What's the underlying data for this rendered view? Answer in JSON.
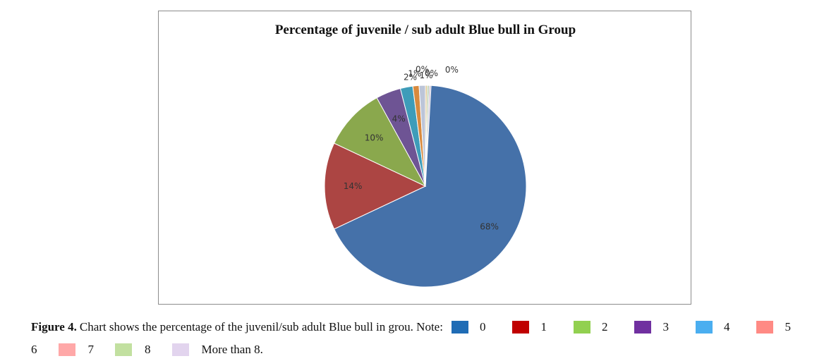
{
  "chart_data": {
    "type": "pie",
    "title": "Percentage  of juvenile / sub adult Blue bull in  Group",
    "categories": [
      "0",
      "1",
      "2",
      "3",
      "4",
      "5",
      "6",
      "7",
      "8",
      "More than 8."
    ],
    "values": [
      68,
      14,
      10,
      4,
      2,
      1,
      1,
      0,
      0,
      0
    ],
    "labels": [
      "68%",
      "14%",
      "10%",
      "4%",
      "2%",
      "1%",
      "1%",
      "0%",
      "0%",
      "0%"
    ],
    "slice_colors": [
      "#4571a9",
      "#ac4543",
      "#8aa84d",
      "#6e5494",
      "#3e9cb9",
      "#d88a3e",
      "#bcc5d8",
      "#dcc48e",
      "#b0c7a6",
      "#ccc0d8"
    ],
    "legend_colors": [
      "#1f6cb5",
      "#c00000",
      "#92d050",
      "#7030a0",
      "#4aaef0",
      "#ff8a84",
      "#9cb1cc",
      "#ffa8a8",
      "#c2e0a0",
      "#e2d4ee"
    ]
  },
  "caption": {
    "label": "Figure 4.",
    "text": "Chart shows the percentage of the juvenil/sub adult Blue bull in grou. Note:"
  }
}
